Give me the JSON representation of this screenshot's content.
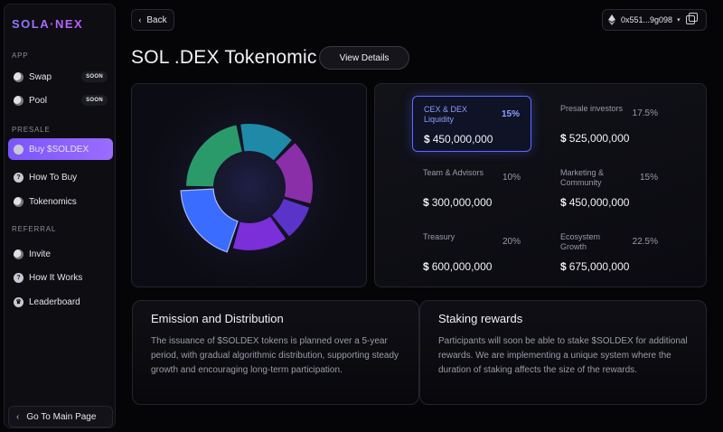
{
  "sidebar": {
    "logo": "SOLA·NEX",
    "sections": {
      "app": "APP",
      "presale": "PRESALE",
      "referral": "REFERRAL"
    },
    "items": [
      {
        "label": "Swap",
        "badge": "SOON",
        "icon": "swap-icon"
      },
      {
        "label": "Pool",
        "badge": "SOON",
        "icon": "pool-icon"
      },
      {
        "label": "Buy $SOLDEX",
        "icon": "coin-icon",
        "active": true
      },
      {
        "label": "How To Buy",
        "icon": "question-icon"
      },
      {
        "label": "Tokenomics",
        "icon": "tokenomics-icon"
      },
      {
        "label": "Invite",
        "icon": "invite-icon"
      },
      {
        "label": "How It Works",
        "icon": "question-icon"
      },
      {
        "label": "Leaderboard",
        "icon": "trophy-icon"
      }
    ],
    "main_page": "Go To Main Page"
  },
  "header": {
    "back": "Back",
    "wallet": "0x551...9g098",
    "title": "SOL .DEX Tokenomic",
    "details": "View Details"
  },
  "tokenomics": [
    {
      "label": "CEX & DEX Liquidity",
      "percent": "15%",
      "amount": "450,000,000",
      "highlight": true
    },
    {
      "label": "Presale investors",
      "percent": "17.5%",
      "amount": "525,000,000"
    },
    {
      "label": "Team & Advisors",
      "percent": "10%",
      "amount": "300,000,000"
    },
    {
      "label": "Marketing & Community",
      "percent": "15%",
      "amount": "450,000,000"
    },
    {
      "label": "Treasury",
      "percent": "20%",
      "amount": "600,000,000"
    },
    {
      "label": "Ecosystem Growth",
      "percent": "22.5%",
      "amount": "675,000,000"
    }
  ],
  "currency_symbol": "$",
  "colors": {
    "accent": "#7a55ff",
    "highlight": "#5a6cff"
  },
  "emission": {
    "title": "Emission and Distribution",
    "text": "The issuance of $SOLDEX tokens is planned over a 5-year period, with gradual algorithmic distribution, supporting steady growth and encouraging long-term participation."
  },
  "staking": {
    "title": "Staking rewards",
    "text": "Participants will soon be able to stake $SOLDEX for additional rewards. We are implementing a unique system where the duration of staking affects the size of the rewards."
  }
}
